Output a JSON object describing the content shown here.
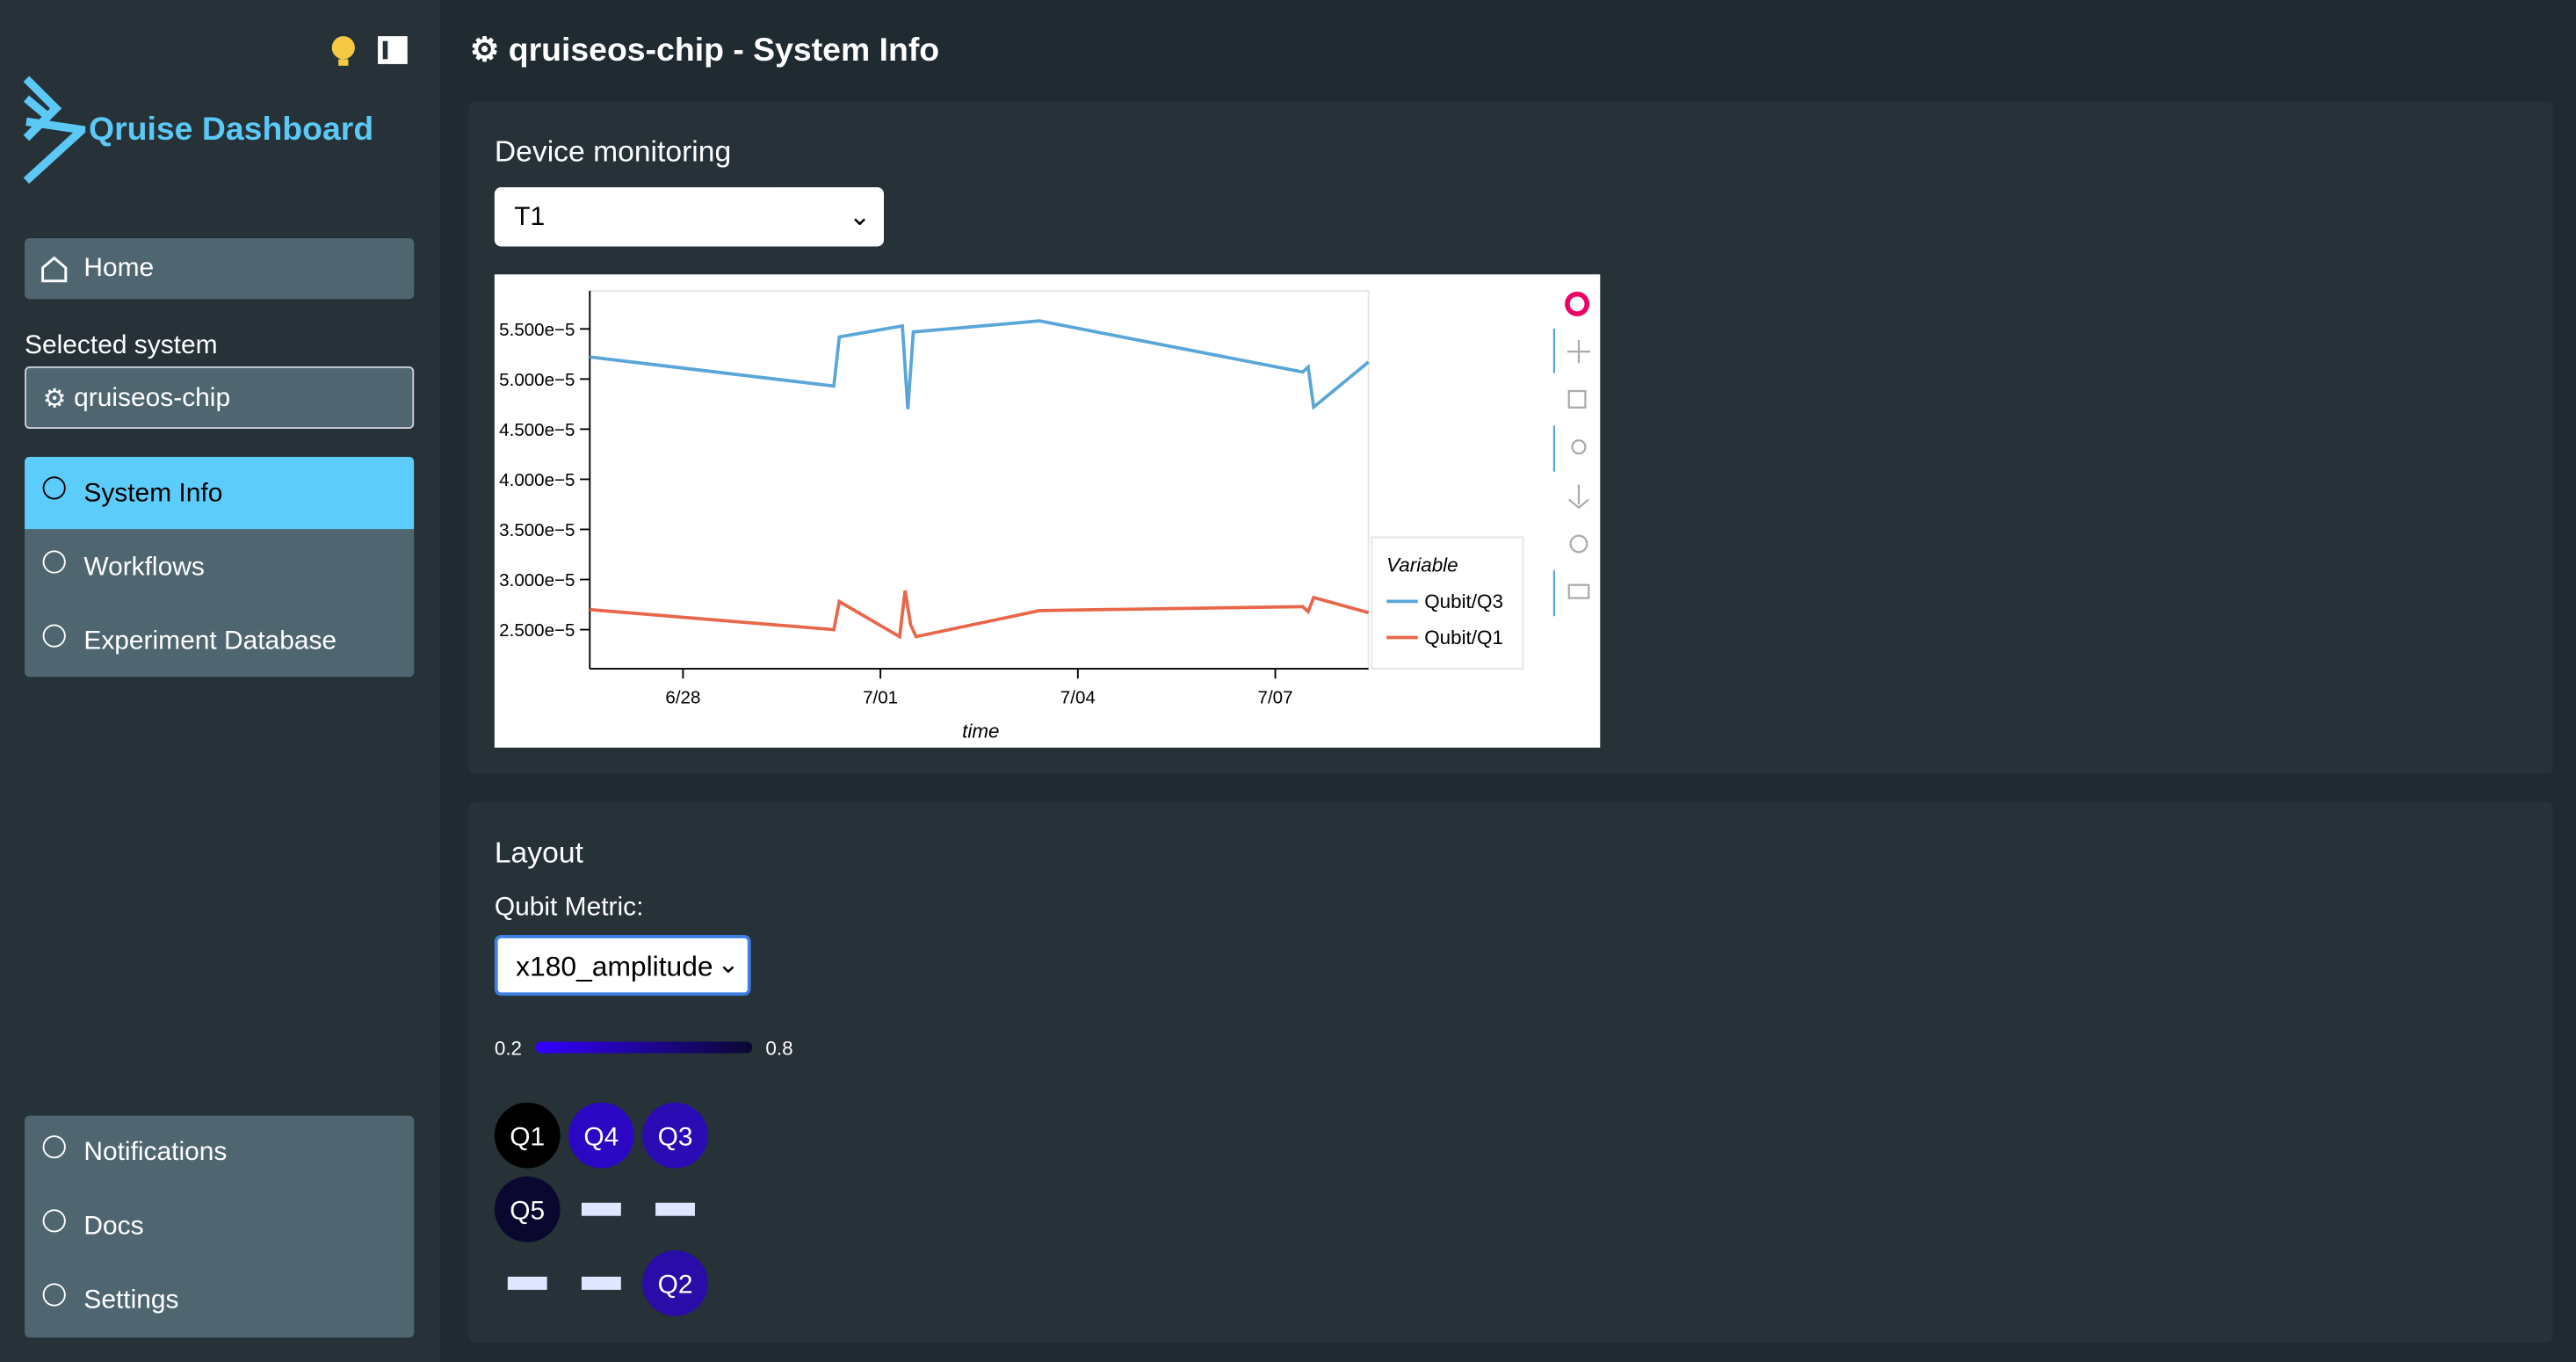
{
  "sidebar": {
    "brand": "Qruise Dashboard",
    "home": "Home",
    "selected_label": "Selected system",
    "selected_system": "qruiseos-chip",
    "nav": [
      "System Info",
      "Workflows",
      "Experiment Database"
    ],
    "bottom": [
      "Notifications",
      "Docs",
      "Settings"
    ]
  },
  "header": {
    "title": "qruiseos-chip - System Info"
  },
  "monitoring": {
    "title": "Device monitoring",
    "select": "T1"
  },
  "chart_data": {
    "type": "line",
    "xlabel": "time",
    "legend_title": "Variable",
    "legend": "right",
    "xlim": [
      "6/26 14:00",
      "7/08 10:00"
    ],
    "xticks": [
      "6/28",
      "7/01",
      "7/04",
      "7/07"
    ],
    "ylim": [
      2.11e-05,
      5.88e-05
    ],
    "yticks": [
      {
        "value": 2.5e-05,
        "label": "2.500e−5"
      },
      {
        "value": 3e-05,
        "label": "3.000e−5"
      },
      {
        "value": 3.5e-05,
        "label": "3.500e−5"
      },
      {
        "value": 4e-05,
        "label": "4.000e−5"
      },
      {
        "value": 4.5e-05,
        "label": "4.500e−5"
      },
      {
        "value": 5e-05,
        "label": "5.000e−5"
      },
      {
        "value": 5.5e-05,
        "label": "5.500e−5"
      }
    ],
    "series": [
      {
        "name": "Qubit/Q3",
        "color": "#5aa6d8",
        "x": [
          "6/26 14:00",
          "6/30 07:00",
          "6/30 09:00",
          "7/01 08:00",
          "7/01 10:00",
          "7/01 12:00",
          "7/03 10:00",
          "7/07 10:00",
          "7/07 12:00",
          "7/07 14:00",
          "7/08 10:00"
        ],
        "values": [
          5.22e-05,
          4.93e-05,
          5.42e-05,
          5.53e-05,
          4.7e-05,
          5.47e-05,
          5.58e-05,
          5.07e-05,
          5.12e-05,
          4.72e-05,
          5.17e-05
        ]
      },
      {
        "name": "Qubit/Q1",
        "color": "#e8674a",
        "x": [
          "6/26 14:00",
          "6/30 07:00",
          "6/30 09:00",
          "7/01 07:00",
          "7/01 09:00",
          "7/01 11:00",
          "7/01 13:00",
          "7/03 10:00",
          "7/07 10:00",
          "7/07 12:00",
          "7/07 14:00",
          "7/08 10:00"
        ],
        "values": [
          2.7e-05,
          2.5e-05,
          2.78e-05,
          2.43e-05,
          2.89e-05,
          2.55e-05,
          2.43e-05,
          2.69e-05,
          2.73e-05,
          2.68e-05,
          2.82e-05,
          2.67e-05
        ]
      }
    ]
  },
  "layout": {
    "title": "Layout",
    "metric_label": "Qubit Metric:",
    "metric": "x180_amplitude",
    "scale_min": "0.2",
    "scale_max": "0.8",
    "qubits": [
      {
        "label": "Q1",
        "color": "#000000",
        "row": 0,
        "col": 0
      },
      {
        "label": "Q4",
        "color": "#2a08c4",
        "row": 0,
        "col": 1
      },
      {
        "label": "Q3",
        "color": "#2a0bb4",
        "row": 0,
        "col": 2
      },
      {
        "label": "Q5",
        "color": "#0b0830",
        "row": 1,
        "col": 0
      },
      {
        "label": "Q2",
        "color": "#2a0ca8",
        "row": 2,
        "col": 2
      }
    ]
  }
}
